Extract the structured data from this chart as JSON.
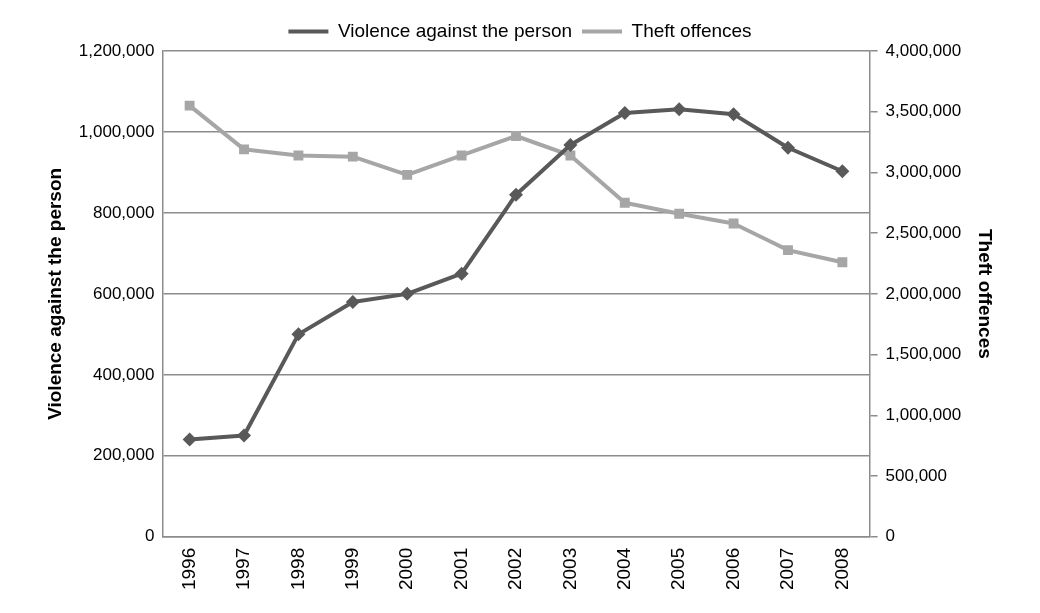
{
  "chart_data": {
    "type": "line",
    "categories": [
      "1996",
      "1997",
      "1998",
      "1999",
      "2000",
      "2001",
      "2002",
      "2003",
      "2004",
      "2005",
      "2006",
      "2007",
      "2008"
    ],
    "ylabel": "Violence against the person",
    "y2label": "Theft offences",
    "ylim": [
      0,
      1200000
    ],
    "yticks": [
      0,
      {
        "value": 200000,
        "label": "200,000"
      },
      {
        "value": 400000,
        "label": "400,000"
      },
      {
        "value": 600000,
        "label": "600,000"
      },
      {
        "value": 800000,
        "label": "800,000"
      },
      {
        "value": 1000000,
        "label": "1,000,000"
      },
      {
        "value": 1200000,
        "label": "1,200,000"
      }
    ],
    "y2lim": [
      0,
      4000000
    ],
    "y2ticks": [
      0,
      {
        "value": 500000,
        "label": "500,000"
      },
      {
        "value": 1000000,
        "label": "1,000,000"
      },
      {
        "value": 1500000,
        "label": "1,500,000"
      },
      {
        "value": 2000000,
        "label": "2,000,000"
      },
      {
        "value": 2500000,
        "label": "2,500,000"
      },
      {
        "value": 3000000,
        "label": "3,000,000"
      },
      {
        "value": 3500000,
        "label": "3,500,000"
      },
      {
        "value": 4000000,
        "label": "4,000,000"
      }
    ],
    "grid": "y",
    "legend": "top",
    "series": [
      {
        "name": "Violence against the person",
        "color": "#595959",
        "marker": "diamond",
        "values": [
          240000,
          250000,
          500000,
          580000,
          600000,
          650000,
          845000,
          968000,
          1047000,
          1056000,
          1044000,
          961000,
          903000
        ]
      },
      {
        "name": "Theft offences",
        "color": "#a6a6a6",
        "marker": "square",
        "axis": "y2",
        "values": [
          3550000,
          3190000,
          3140000,
          3130000,
          2980000,
          3140000,
          3300000,
          3140000,
          2750000,
          2660000,
          2580000,
          2360000,
          2260000
        ]
      }
    ]
  }
}
